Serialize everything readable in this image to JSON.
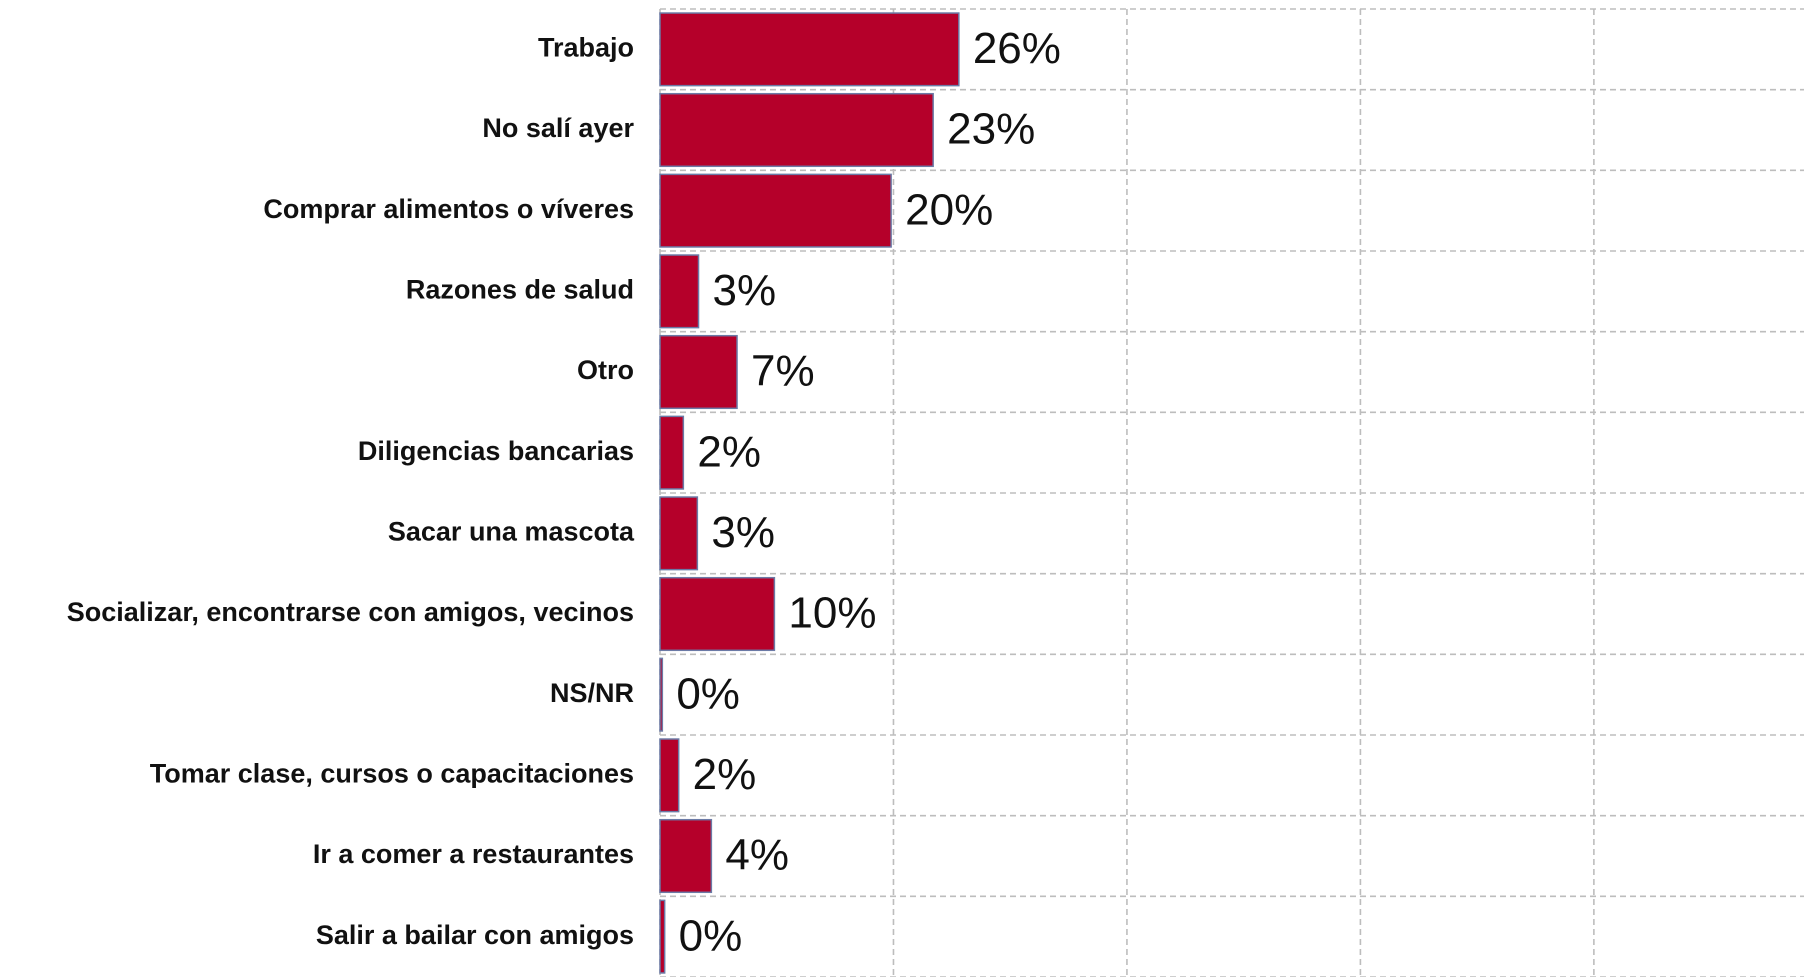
{
  "chart_data": {
    "type": "bar",
    "orientation": "horizontal",
    "categories": [
      "Trabajo",
      "No salí ayer",
      "Comprar alimentos o víveres",
      "Razones de salud",
      "Otro",
      "Diligencias bancarias",
      "Sacar una mascota",
      "Socializar, encontrarse con amigos, vecinos",
      "NS/NR",
      "Tomar clase, cursos o capacitaciones",
      "Ir a comer a restaurantes",
      "Salir a bailar con amigos"
    ],
    "values": [
      25.6,
      23.4,
      19.8,
      3.3,
      6.6,
      2.0,
      3.2,
      9.8,
      0.2,
      1.6,
      4.4,
      0.4
    ],
    "value_labels": [
      "26%",
      "23%",
      "20%",
      "3%",
      "7%",
      "2%",
      "3%",
      "10%",
      "0%",
      "2%",
      "4%",
      "0%"
    ],
    "color": "#b5002a",
    "xlim": [
      0,
      98
    ],
    "xticks": [
      0,
      20,
      40,
      60,
      80
    ],
    "grid": true
  }
}
